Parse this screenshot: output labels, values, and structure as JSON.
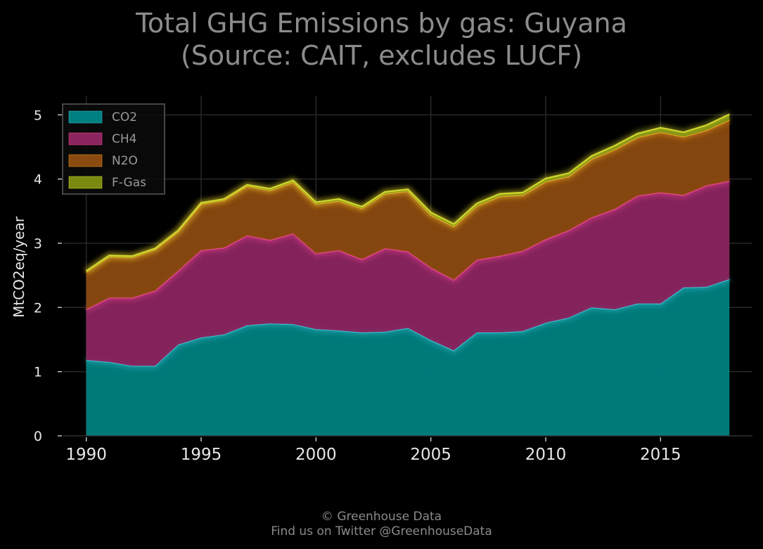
{
  "header": {
    "title_line1": "Total GHG Emissions by gas: Guyana",
    "title_line2": "(Source: CAIT, excludes LUCF)"
  },
  "footer": {
    "line1": "© Greenhouse Data",
    "line2": "Find us on Twitter @GreenhouseData"
  },
  "colors": {
    "background": "#000000",
    "CO2": "#008080",
    "CH4": "#8b2560",
    "N2O": "#8b4a10",
    "F-Gas": "#7a8a10",
    "CO2_line": "#3ec6d6",
    "CH4_line": "#ff4a9a",
    "N2O_line": "#f0a020",
    "F-Gas_line": "#d8e030"
  },
  "chart_data": {
    "type": "area",
    "stacked": true,
    "title": "Total GHG Emissions by gas: Guyana (Source: CAIT, excludes LUCF)",
    "xlabel": "",
    "ylabel": "MtCO2eq/year",
    "xlim": [
      1989,
      2019
    ],
    "ylim": [
      0,
      5.3
    ],
    "xticks": [
      1990,
      1995,
      2000,
      2005,
      2010,
      2015
    ],
    "yticks": [
      0,
      1,
      2,
      3,
      4,
      5
    ],
    "grid": true,
    "legend_position": "top-left",
    "x": [
      1990,
      1991,
      1992,
      1993,
      1994,
      1995,
      1996,
      1997,
      1998,
      1999,
      2000,
      2001,
      2002,
      2003,
      2004,
      2005,
      2006,
      2007,
      2008,
      2009,
      2010,
      2011,
      2012,
      2013,
      2014,
      2015,
      2016,
      2017,
      2018
    ],
    "series": [
      {
        "name": "CO2",
        "values": [
          1.18,
          1.15,
          1.09,
          1.09,
          1.42,
          1.53,
          1.58,
          1.72,
          1.75,
          1.74,
          1.66,
          1.64,
          1.61,
          1.62,
          1.68,
          1.49,
          1.33,
          1.61,
          1.61,
          1.63,
          1.76,
          1.84,
          2.0,
          1.97,
          2.06,
          2.06,
          2.31,
          2.32,
          2.44
        ]
      },
      {
        "name": "CH4",
        "values": [
          0.79,
          1.0,
          1.06,
          1.17,
          1.15,
          1.36,
          1.35,
          1.4,
          1.3,
          1.41,
          1.18,
          1.25,
          1.14,
          1.3,
          1.19,
          1.13,
          1.1,
          1.13,
          1.19,
          1.25,
          1.3,
          1.36,
          1.4,
          1.56,
          1.68,
          1.73,
          1.44,
          1.58,
          1.53
        ]
      },
      {
        "name": "N2O",
        "values": [
          0.58,
          0.64,
          0.63,
          0.64,
          0.61,
          0.72,
          0.74,
          0.77,
          0.77,
          0.8,
          0.77,
          0.77,
          0.79,
          0.85,
          0.94,
          0.82,
          0.83,
          0.84,
          0.93,
          0.87,
          0.9,
          0.84,
          0.91,
          0.93,
          0.91,
          0.94,
          0.91,
          0.86,
          0.95
        ]
      },
      {
        "name": "F-Gas",
        "values": [
          0.02,
          0.02,
          0.02,
          0.02,
          0.02,
          0.02,
          0.02,
          0.02,
          0.03,
          0.03,
          0.03,
          0.03,
          0.03,
          0.03,
          0.03,
          0.04,
          0.04,
          0.04,
          0.04,
          0.04,
          0.05,
          0.05,
          0.05,
          0.06,
          0.06,
          0.07,
          0.07,
          0.08,
          0.09
        ]
      }
    ]
  }
}
